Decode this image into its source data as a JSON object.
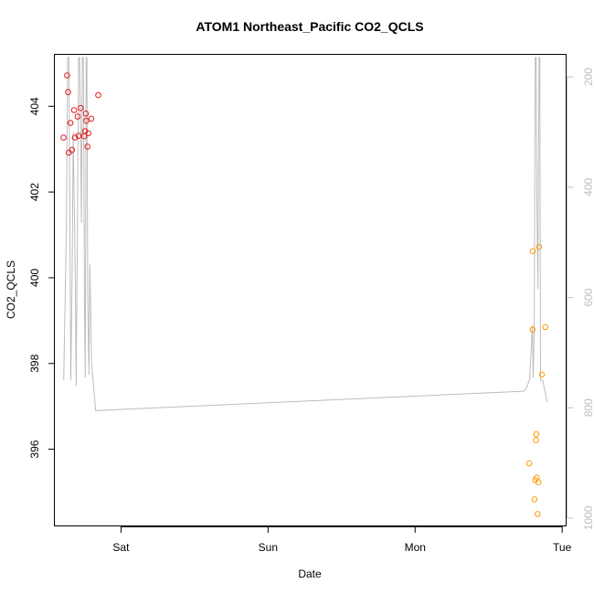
{
  "chart_data": {
    "type": "scatter",
    "title": "ATOM1 Northeast_Pacific CO2_QCLS",
    "xlabel": "Date",
    "ylabel": "CO2_QCLS",
    "x_tick_labels": [
      "Sat",
      "Sun",
      "Mon",
      "Tue"
    ],
    "x_tick_values": [
      1.0,
      2.0,
      3.0,
      4.0
    ],
    "xlim": [
      0.55,
      4.03
    ],
    "ylim": [
      394.2,
      405.2
    ],
    "y_ticks": [
      396,
      398,
      400,
      402,
      404
    ],
    "y_tick_labels": [
      "396",
      "398",
      "400",
      "402",
      "404"
    ],
    "y2_ticks": [
      200,
      400,
      600,
      800,
      1000
    ],
    "y2_tick_labels": [
      "200",
      "400",
      "600",
      "800",
      "1000"
    ],
    "y2lim": [
      1015,
      160
    ],
    "y2_reversed": true,
    "grid": false,
    "legend": "none",
    "colors": {
      "series1": "#e41a1c",
      "series2": "#ff9a00",
      "secondary_line": "#bdbdbd",
      "axis": "#000000",
      "right_axis": "#bdbdbd"
    },
    "series": [
      {
        "color": "#e41a1c",
        "marker": "open-circle",
        "points": [
          [
            0.609,
            403.27
          ],
          [
            0.633,
            404.72
          ],
          [
            0.64,
            404.33
          ],
          [
            0.645,
            402.92
          ],
          [
            0.656,
            403.61
          ],
          [
            0.666,
            402.98
          ],
          [
            0.681,
            403.91
          ],
          [
            0.687,
            403.27
          ],
          [
            0.705,
            403.76
          ],
          [
            0.711,
            403.31
          ],
          [
            0.726,
            403.96
          ],
          [
            0.75,
            403.3
          ],
          [
            0.756,
            403.42
          ],
          [
            0.761,
            403.83
          ],
          [
            0.764,
            403.66
          ],
          [
            0.772,
            403.06
          ],
          [
            0.778,
            403.37
          ],
          [
            0.798,
            403.71
          ],
          [
            0.845,
            404.26
          ]
        ]
      },
      {
        "color": "#ff9a00",
        "marker": "open-circle",
        "points": [
          [
            3.776,
            395.67
          ],
          [
            3.8,
            400.62
          ],
          [
            3.798,
            398.79
          ],
          [
            3.812,
            394.83
          ],
          [
            3.816,
            395.28
          ],
          [
            3.821,
            396.21
          ],
          [
            3.824,
            396.35
          ],
          [
            3.827,
            395.34
          ],
          [
            3.833,
            394.49
          ],
          [
            3.838,
            395.23
          ],
          [
            3.843,
            400.72
          ],
          [
            3.862,
            397.74
          ],
          [
            3.886,
            398.85
          ]
        ]
      }
    ],
    "secondary_line": {
      "axis": "right",
      "color": "#bdbdbd",
      "points": [
        [
          0.61,
          750
        ],
        [
          0.628,
          480
        ],
        [
          0.637,
          165
        ],
        [
          0.646,
          165
        ],
        [
          0.653,
          500
        ],
        [
          0.659,
          750
        ],
        [
          0.668,
          550
        ],
        [
          0.675,
          300
        ],
        [
          0.685,
          480
        ],
        [
          0.69,
          580
        ],
        [
          0.695,
          760
        ],
        [
          0.703,
          500
        ],
        [
          0.708,
          300
        ],
        [
          0.712,
          165
        ],
        [
          0.718,
          165
        ],
        [
          0.725,
          300
        ],
        [
          0.731,
          465
        ],
        [
          0.737,
          165
        ],
        [
          0.744,
          165
        ],
        [
          0.752,
          620
        ],
        [
          0.757,
          745
        ],
        [
          0.763,
          165
        ],
        [
          0.768,
          165
        ],
        [
          0.774,
          600
        ],
        [
          0.782,
          740
        ],
        [
          0.788,
          540
        ],
        [
          0.794,
          630
        ],
        [
          0.8,
          720
        ],
        [
          0.828,
          805
        ],
        [
          3.737,
          770
        ],
        [
          3.755,
          765
        ],
        [
          3.778,
          750
        ],
        [
          3.788,
          700
        ],
        [
          3.797,
          650
        ],
        [
          3.803,
          745
        ],
        [
          3.81,
          650
        ],
        [
          3.817,
          165
        ],
        [
          3.823,
          165
        ],
        [
          3.828,
          425
        ],
        [
          3.835,
          585
        ],
        [
          3.843,
          165
        ],
        [
          3.848,
          165
        ],
        [
          3.853,
          750
        ],
        [
          3.868,
          750
        ],
        [
          3.898,
          790
        ]
      ]
    }
  }
}
